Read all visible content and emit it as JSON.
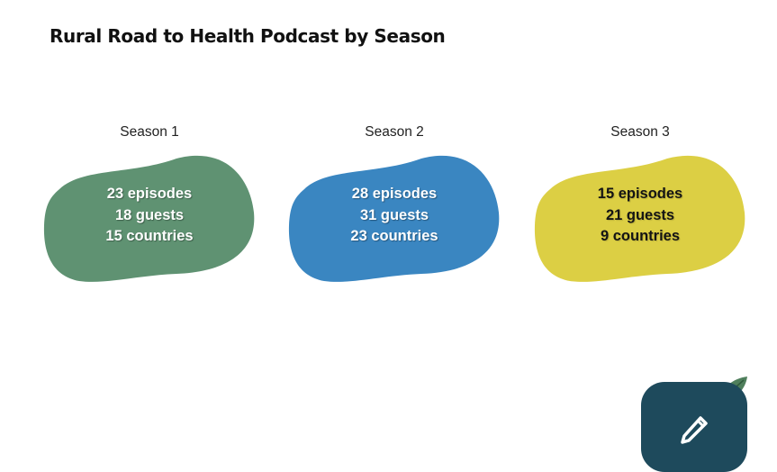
{
  "page": {
    "title": "Rural Road to Health Podcast by Season"
  },
  "seasons": [
    {
      "label": "Season 1",
      "episodes": "23 episodes",
      "guests": "18 guests",
      "countries": "15 countries",
      "color": "#5f9272",
      "text_color": "#ffffff"
    },
    {
      "label": "Season 2",
      "episodes": "28 episodes",
      "guests": "31 guests",
      "countries": "23 countries",
      "color": "#3a86c1",
      "text_color": "#ffffff"
    },
    {
      "label": "Season 3",
      "episodes": "15 episodes",
      "guests": "21 guests",
      "countries": "9 countries",
      "color": "#dccf44",
      "text_color": "#141414"
    }
  ],
  "edit_button": {
    "icon": "pencil-icon",
    "color": "#1e4a5c"
  }
}
